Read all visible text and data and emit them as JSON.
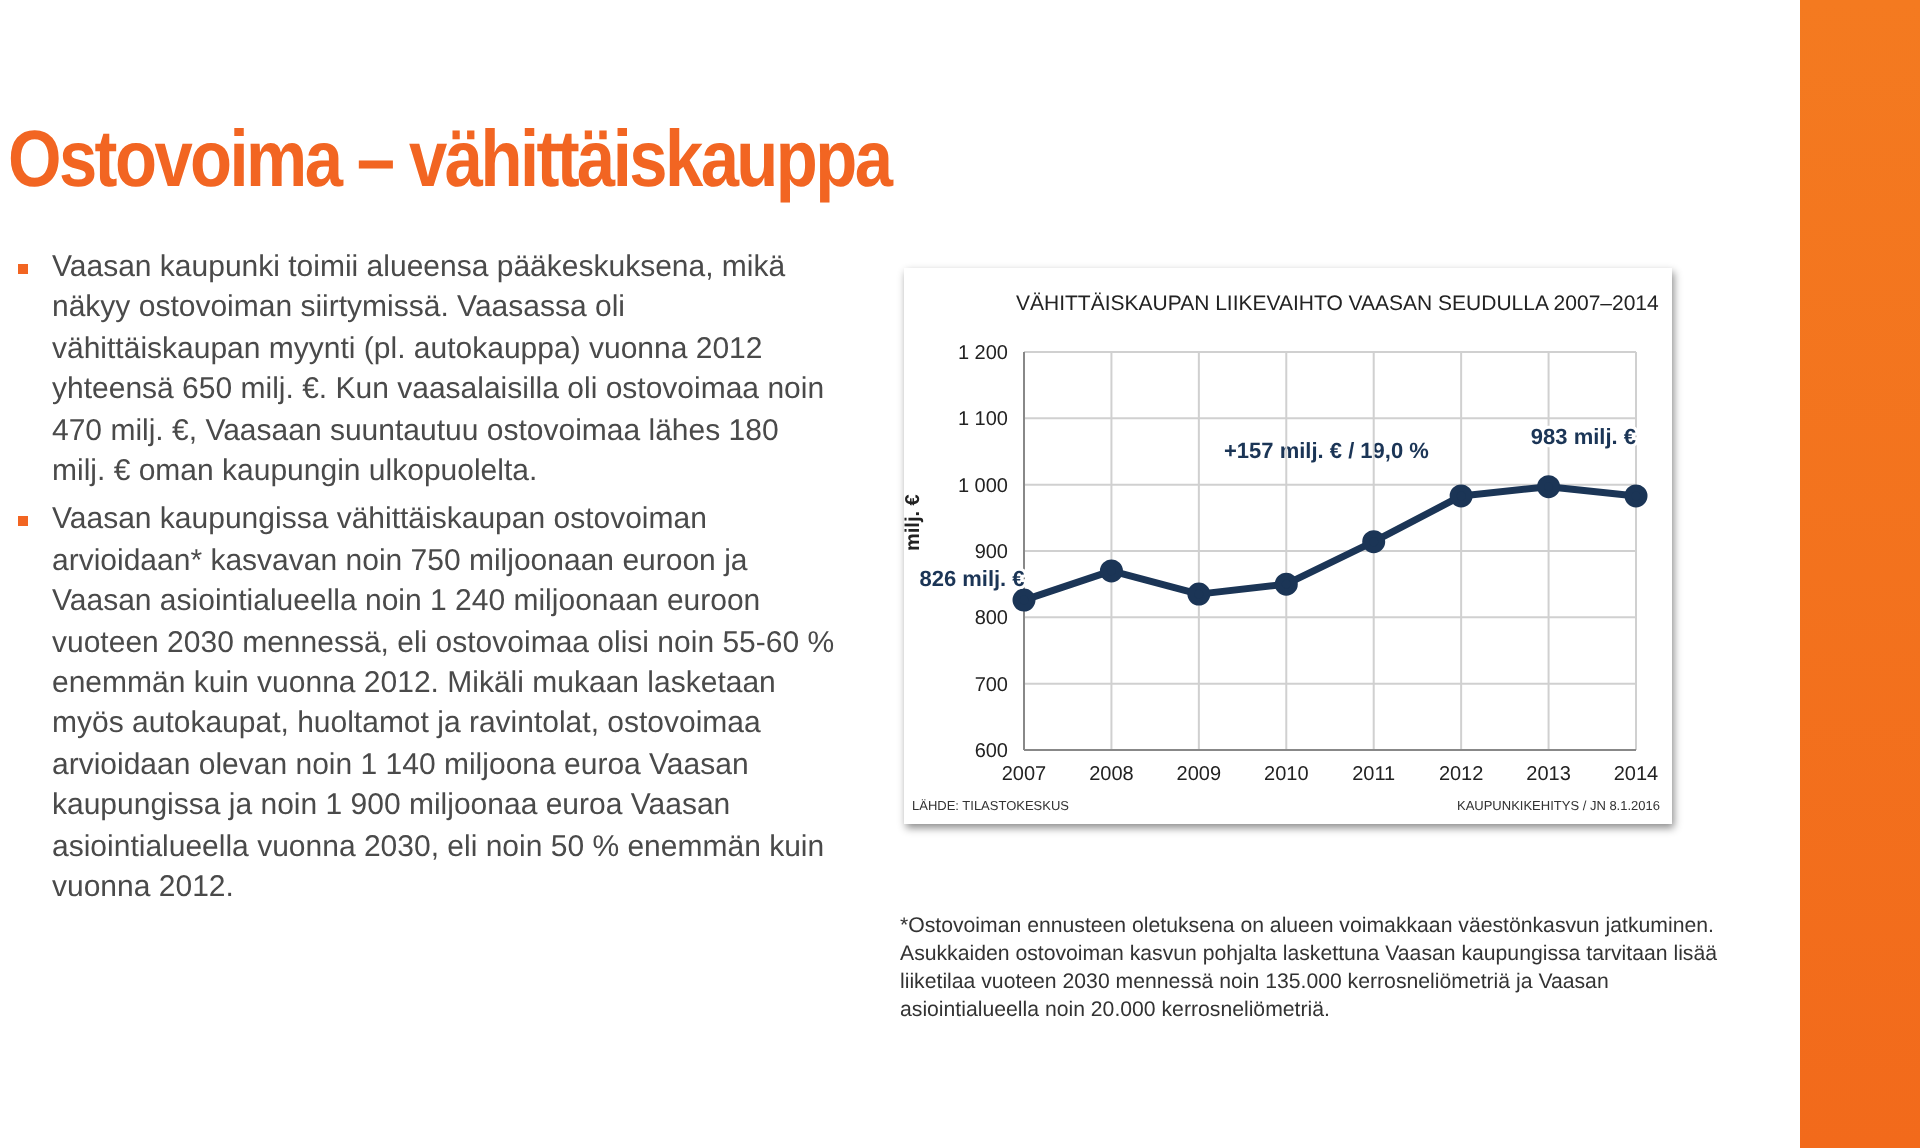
{
  "chart_data": {
    "type": "line",
    "title": "Ostovoima – vähittäiskauppa",
    "subtitle": "VÄHITTÄISKAUPAN LIIKEVAIHTO VAASAN SEUDULLA 2007–2014",
    "ylabel": "milj. €",
    "categories": [
      "2007",
      "2008",
      "2009",
      "2010",
      "2011",
      "2012",
      "2013",
      "2014"
    ],
    "series": [
      {
        "color": "#1b3556",
        "values": [
          826,
          870,
          835,
          850,
          914,
          983,
          997,
          983
        ]
      }
    ],
    "ylim": [
      600,
      1200
    ],
    "yticks": [
      600,
      700,
      800,
      900,
      {
        "value": 1000,
        "label": "1 000"
      },
      {
        "value": 1100,
        "label": "1 100"
      },
      {
        "value": 1200,
        "label": "1 200"
      }
    ],
    "grid": true,
    "marker": "circle",
    "line_style": "solid",
    "legend": false,
    "annotations": [
      "Vaasan kaupunki toimii alueensa pääkeskuksena, mikä näkyy ostovoiman siirtymissä. Vaasassa oli vähittäiskaupan myynti (pl. autokauppa) vuonna 2012 yhteensä 650 milj. €. Kun vaasalaisilla oli ostovoimaa noin 470 milj. €, Vaasaan suuntautuu ostovoimaa lähes 180 milj. € oman kaupungin ulkopuolelta.",
      "Vaasan kaupungissa vähittäiskaupan ostovoiman arvioidaan* kasvavan noin 750 miljoonaan euroon ja Vaasan asiointialueella noin 1 240 miljoonaan euroon vuoteen 2030 mennessä, eli ostovoimaa olisi noin 55-60 % enemmän kuin vuonna 2012. Mikäli mukaan lasketaan myös autokaupat, huoltamot ja ravintolat, ostovoimaa arvioidaan olevan noin 1 140 miljoona euroa Vaasan kaupungissa ja noin 1 900 miljoonaa euroa Vaasan asiointialueella vuonna 2030, eli noin 50 % enemmän kuin vuonna 2012.",
      "*Ostovoiman ennusteen oletuksena on alueen voimakkaan väestönkasvun jatkuminen. Asukkaiden ostovoiman kasvun pohjalta laskettuna Vaasan kaupungissa tarvitaan lisää liiketilaa vuoteen 2030 mennessä noin 135.000 kerrosneliömetriä ja Vaasan asiointialueella noin 20.000 kerrosneliömetriä.",
      "LÄHDE: TILASTOKESKUS",
      "KAUPUNKIKEHITYS / JN 8.1.2016",
      "+157 milj. € / 19,0 %",
      {
        "text": "826 milj. €",
        "x": "2007",
        "y": 826
      },
      {
        "text": "983 milj. €",
        "x": "2014",
        "y": 983
      }
    ]
  }
}
